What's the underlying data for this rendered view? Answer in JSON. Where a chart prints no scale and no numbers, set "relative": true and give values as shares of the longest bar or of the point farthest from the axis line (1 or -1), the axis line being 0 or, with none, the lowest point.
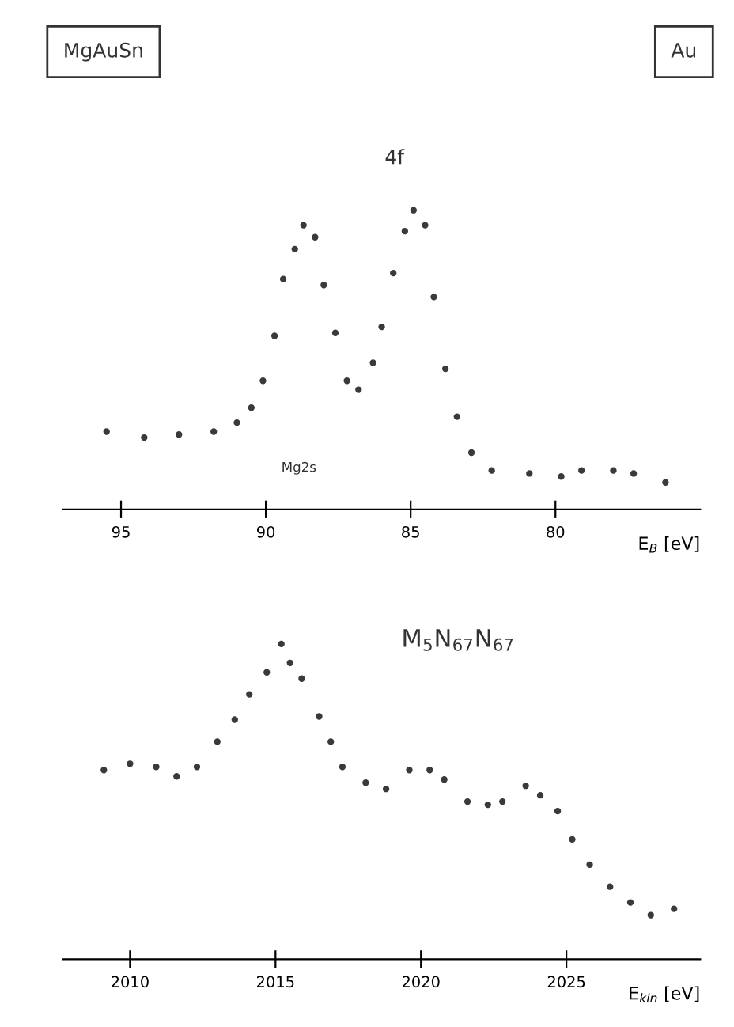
{
  "chart_data": [
    {
      "type": "scatter",
      "relative": true,
      "marker": "circle",
      "tick_labels": "x",
      "grid": false,
      "legend": false,
      "xlabel": "E$_{B}$ [eV]",
      "annotations": [
        "MgAuSn",
        "Au",
        "4f",
        "Mg2s"
      ],
      "xlim": [
        97,
        75
      ],
      "xticks": [
        95,
        90,
        85,
        80
      ],
      "x": [
        95.5,
        94.2,
        93.0,
        91.8,
        91.0,
        90.5,
        90.1,
        89.7,
        89.4,
        89.0,
        88.7,
        88.3,
        88.0,
        87.6,
        87.2,
        86.8,
        86.3,
        86.0,
        85.6,
        85.2,
        84.9,
        84.5,
        84.2,
        83.8,
        83.4,
        82.9,
        82.2,
        80.9,
        79.8,
        79.1,
        78.0,
        77.3,
        76.2
      ],
      "series": [
        {
          "color": "#3a3a3a",
          "values": [
            0.26,
            0.24,
            0.25,
            0.26,
            0.29,
            0.34,
            0.43,
            0.58,
            0.77,
            0.87,
            0.95,
            0.91,
            0.75,
            0.59,
            0.43,
            0.4,
            0.49,
            0.61,
            0.79,
            0.93,
            1.0,
            0.95,
            0.71,
            0.47,
            0.31,
            0.19,
            0.13,
            0.12,
            0.11,
            0.13,
            0.13,
            0.12,
            0.09
          ]
        }
      ]
    },
    {
      "type": "scatter",
      "relative": true,
      "marker": "circle",
      "tick_labels": "x",
      "grid": false,
      "legend": false,
      "xlabel": "E$_{kin}$ [eV]",
      "annotations": [
        "M$_{5}$N$_{67}$N$_{67}$"
      ],
      "xlim": [
        2007.7,
        2029.6
      ],
      "xticks": [
        2010,
        2015,
        2020,
        2025
      ],
      "x": [
        2009.1,
        2010.0,
        2010.9,
        2011.6,
        2012.3,
        2013.0,
        2013.6,
        2014.1,
        2014.7,
        2015.2,
        2015.5,
        2015.9,
        2016.5,
        2016.9,
        2017.3,
        2018.1,
        2018.8,
        2019.6,
        2020.3,
        2020.8,
        2021.6,
        2022.3,
        2022.8,
        2023.6,
        2024.1,
        2024.7,
        2025.2,
        2025.8,
        2026.5,
        2027.2,
        2027.9,
        2028.7
      ],
      "series": [
        {
          "color": "#3a3a3a",
          "values": [
            0.6,
            0.62,
            0.61,
            0.58,
            0.61,
            0.69,
            0.76,
            0.84,
            0.91,
            1.0,
            0.94,
            0.89,
            0.77,
            0.69,
            0.61,
            0.56,
            0.54,
            0.6,
            0.6,
            0.57,
            0.5,
            0.49,
            0.5,
            0.55,
            0.52,
            0.47,
            0.38,
            0.3,
            0.23,
            0.18,
            0.14,
            0.16
          ]
        }
      ]
    }
  ]
}
